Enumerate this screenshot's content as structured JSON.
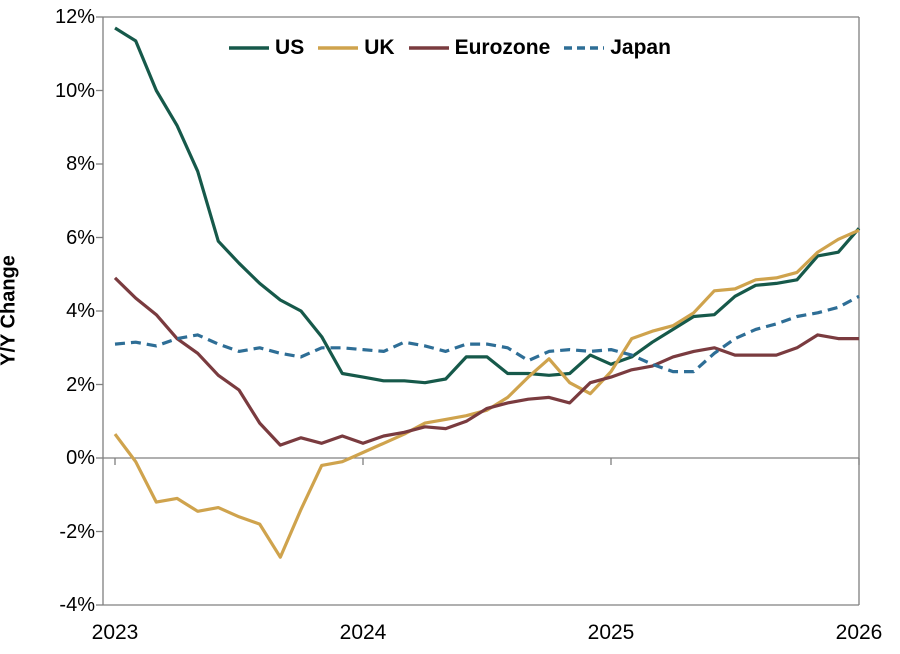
{
  "chart_data": {
    "type": "line",
    "title": "",
    "ylabel": "Y/Y Change",
    "x_unit": "month",
    "x_start": "2023-01",
    "x_end": "2026-01",
    "x_tick_labels": [
      "2023",
      "2024",
      "2025",
      "2026"
    ],
    "y_tick_labels": [
      "12%",
      "10%",
      "8%",
      "6%",
      "4%",
      "2%",
      "0%",
      "-2%",
      "-4%"
    ],
    "ylim": [
      -4,
      12
    ],
    "y_tick_step": 2,
    "grid": false,
    "zero_line": true,
    "legend_position": "top-center",
    "axis_color": "#808080",
    "series": [
      {
        "name": "US",
        "color": "#16594A",
        "style": "solid",
        "values": [
          11.7,
          11.35,
          10.0,
          9.05,
          7.8,
          5.9,
          5.3,
          4.75,
          4.3,
          4.0,
          3.3,
          2.3,
          2.2,
          2.1,
          2.1,
          2.05,
          2.15,
          2.75,
          2.75,
          2.3,
          2.3,
          2.25,
          2.3,
          2.8,
          2.55,
          2.75,
          3.15,
          3.5,
          3.85,
          3.9,
          4.4,
          4.7,
          4.75,
          4.85,
          5.5,
          5.6,
          6.25
        ]
      },
      {
        "name": "UK",
        "color": "#CFA34D",
        "style": "solid",
        "values": [
          0.65,
          -0.1,
          -1.2,
          -1.1,
          -1.45,
          -1.35,
          -1.6,
          -1.8,
          -2.7,
          -1.4,
          -0.2,
          -0.1,
          0.15,
          0.4,
          0.65,
          0.95,
          1.05,
          1.15,
          1.3,
          1.65,
          2.2,
          2.7,
          2.05,
          1.75,
          2.35,
          3.25,
          3.45,
          3.6,
          3.95,
          4.55,
          4.6,
          4.85,
          4.9,
          5.05,
          5.6,
          5.95,
          6.2
        ]
      },
      {
        "name": "Eurozone",
        "color": "#7A3B3F",
        "style": "solid",
        "values": [
          4.9,
          4.35,
          3.9,
          3.25,
          2.85,
          2.25,
          1.85,
          0.95,
          0.35,
          0.55,
          0.4,
          0.6,
          0.4,
          0.6,
          0.7,
          0.85,
          0.8,
          1.0,
          1.35,
          1.5,
          1.6,
          1.65,
          1.5,
          2.05,
          2.2,
          2.4,
          2.5,
          2.75,
          2.9,
          3.0,
          2.8,
          2.8,
          2.8,
          3.0,
          3.35,
          3.25,
          3.25
        ]
      },
      {
        "name": "Japan",
        "color": "#2E6E96",
        "style": "dashed",
        "values": [
          3.1,
          3.15,
          3.05,
          3.25,
          3.35,
          3.1,
          2.9,
          3.0,
          2.85,
          2.75,
          3.0,
          3.0,
          2.95,
          2.9,
          3.15,
          3.05,
          2.9,
          3.1,
          3.1,
          3.0,
          2.65,
          2.9,
          2.95,
          2.9,
          2.95,
          2.8,
          2.55,
          2.35,
          2.35,
          2.85,
          3.25,
          3.5,
          3.65,
          3.85,
          3.95,
          4.1,
          4.4
        ]
      }
    ]
  }
}
